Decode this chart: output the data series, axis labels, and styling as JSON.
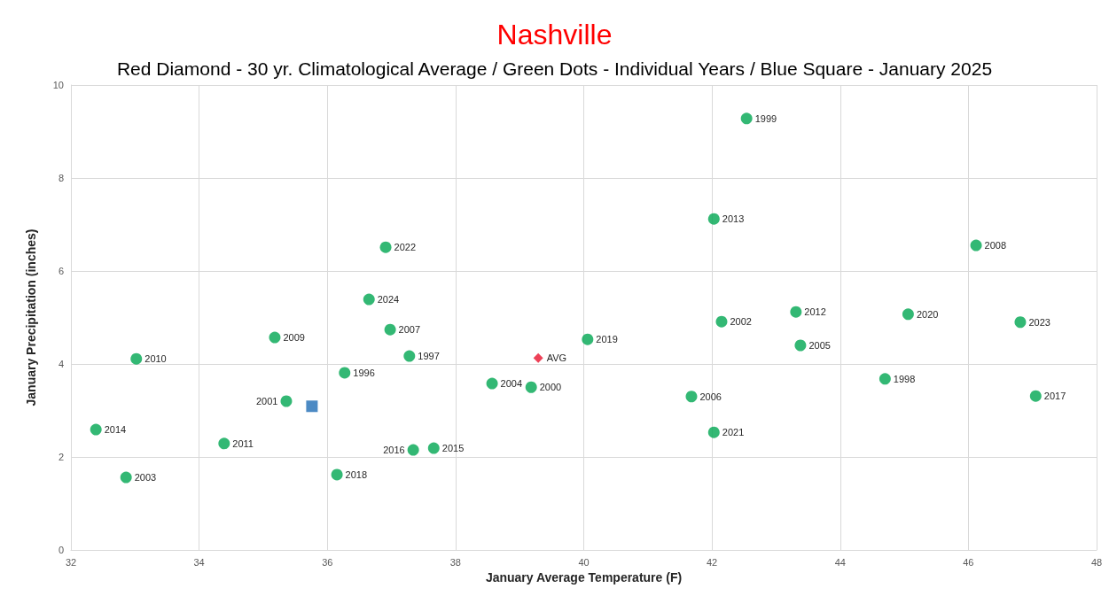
{
  "chart_data": {
    "type": "scatter",
    "title": "Nashville",
    "subtitle": "Red Diamond - 30 yr. Climatological Average / Green Dots - Individual Years / Blue Square - January 2025",
    "xlabel": "January Average Temperature (F)",
    "ylabel": "January Precipitation (inches)",
    "xlim": [
      32,
      48
    ],
    "xticks": [
      32,
      34,
      36,
      38,
      40,
      42,
      44,
      46,
      48
    ],
    "ylim": [
      0,
      10
    ],
    "yticks": [
      0,
      2,
      4,
      6,
      8,
      10
    ],
    "grid": true,
    "series": [
      {
        "color": "#00a651",
        "marker": "circle",
        "x": [
          36.91,
          36.65,
          36.98,
          35.18,
          42.03,
          40.06,
          42.54,
          46.12,
          42.15,
          43.31,
          43.38,
          45.06,
          46.81,
          33.02,
          36.27,
          35.36,
          32.39,
          34.39,
          32.86,
          36.15,
          37.28,
          38.57,
          39.18,
          41.68,
          42.03,
          37.34,
          37.66,
          44.7,
          47.05
        ],
        "values": [
          6.51,
          5.39,
          4.74,
          4.57,
          7.12,
          4.53,
          9.28,
          6.55,
          4.91,
          5.12,
          4.4,
          5.07,
          4.9,
          4.11,
          3.81,
          3.2,
          2.59,
          2.29,
          1.56,
          1.62,
          4.17,
          3.58,
          3.5,
          3.3,
          2.53,
          2.15,
          2.19,
          3.68,
          3.31
        ]
      },
      {
        "color": "#e8112d",
        "marker": "diamond",
        "x": [
          39.29
        ],
        "values": [
          4.13
        ]
      },
      {
        "color": "#1f6db5",
        "marker": "square",
        "x": [
          35.76
        ],
        "values": [
          3.09
        ]
      }
    ],
    "annotations": [
      {
        "text": "2022",
        "x": 36.91,
        "y": 6.51
      },
      {
        "text": "2024",
        "x": 36.65,
        "y": 5.39
      },
      {
        "text": "2007",
        "x": 36.98,
        "y": 4.74
      },
      {
        "text": "2009",
        "x": 35.18,
        "y": 4.57
      },
      {
        "text": "2013",
        "x": 42.03,
        "y": 7.12
      },
      {
        "text": "2019",
        "x": 40.06,
        "y": 4.53
      },
      {
        "text": "1999",
        "x": 42.54,
        "y": 9.28
      },
      {
        "text": "2008",
        "x": 46.12,
        "y": 6.55
      },
      {
        "text": "2002",
        "x": 42.15,
        "y": 4.91
      },
      {
        "text": "2012",
        "x": 43.31,
        "y": 5.12
      },
      {
        "text": "2005",
        "x": 43.38,
        "y": 4.4
      },
      {
        "text": "2020",
        "x": 45.06,
        "y": 5.07
      },
      {
        "text": "2023",
        "x": 46.81,
        "y": 4.9
      },
      {
        "text": "2010",
        "x": 33.02,
        "y": 4.11
      },
      {
        "text": "1996",
        "x": 36.27,
        "y": 3.81
      },
      {
        "text": "2001",
        "x": 35.36,
        "y": 3.2
      },
      {
        "text": "2014",
        "x": 32.39,
        "y": 2.59
      },
      {
        "text": "2011",
        "x": 34.39,
        "y": 2.29
      },
      {
        "text": "2003",
        "x": 32.86,
        "y": 1.56
      },
      {
        "text": "2018",
        "x": 36.15,
        "y": 1.62
      },
      {
        "text": "1997",
        "x": 37.28,
        "y": 4.17
      },
      {
        "text": "2004",
        "x": 38.57,
        "y": 3.58
      },
      {
        "text": "2000",
        "x": 39.18,
        "y": 3.5
      },
      {
        "text": "2006",
        "x": 41.68,
        "y": 3.3
      },
      {
        "text": "2021",
        "x": 42.03,
        "y": 2.53
      },
      {
        "text": "2016",
        "x": 37.34,
        "y": 2.15
      },
      {
        "text": "2015",
        "x": 37.66,
        "y": 2.19
      },
      {
        "text": "1998",
        "x": 44.7,
        "y": 3.68
      },
      {
        "text": "2017",
        "x": 47.05,
        "y": 3.31
      },
      {
        "text": "AVG",
        "x": 39.29,
        "y": 4.13
      }
    ]
  }
}
